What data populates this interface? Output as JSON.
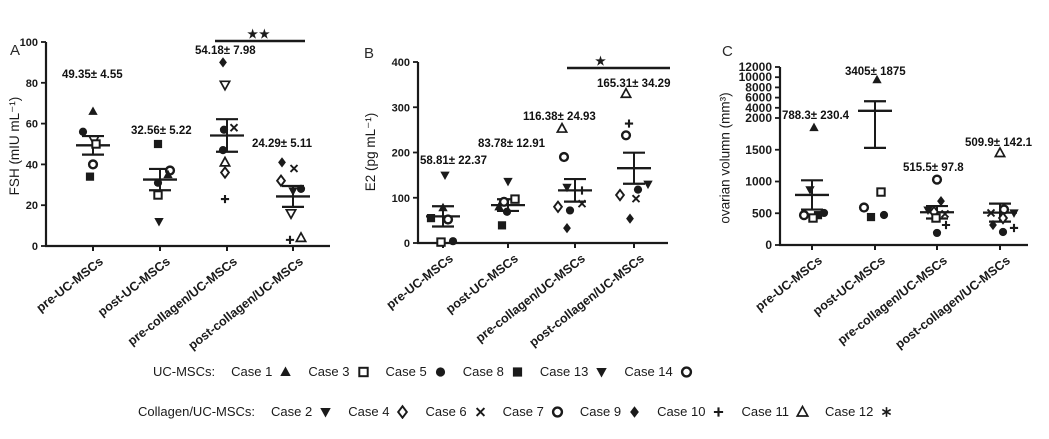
{
  "figure": {
    "background": "#ffffff",
    "ink_color": "#1a1a1a"
  },
  "legend": {
    "rows": [
      {
        "group_label": "UC-MSCs:",
        "entries": [
          {
            "case": "Case 1",
            "marker": "triangle-up-filled"
          },
          {
            "case": "Case 3",
            "marker": "square-open"
          },
          {
            "case": "Case 5",
            "marker": "circle-filled"
          },
          {
            "case": "Case 8",
            "marker": "square-filled"
          },
          {
            "case": "Case 13",
            "marker": "triangle-down-filled"
          },
          {
            "case": "Case 14",
            "marker": "circle-open"
          }
        ]
      },
      {
        "group_label": "Collagen/UC-MSCs:",
        "entries": [
          {
            "case": "Case 2",
            "marker": "triangle-down-filled"
          },
          {
            "case": "Case 4",
            "marker": "diamond-open"
          },
          {
            "case": "Case 6",
            "marker": "x"
          },
          {
            "case": "Case 7",
            "marker": "circle-open"
          },
          {
            "case": "Case 9",
            "marker": "diamond-filled"
          },
          {
            "case": "Case 10",
            "marker": "plus"
          },
          {
            "case": "Case 11",
            "marker": "triangle-up-open"
          },
          {
            "case": "Case 12",
            "marker": "asterisk"
          }
        ]
      }
    ]
  },
  "chart_data": [
    {
      "type": "scatter",
      "panel_label": "A",
      "ylabel": "FSH (mIU mL⁻¹)",
      "ylim": [
        0,
        100
      ],
      "yticks": [
        0,
        20,
        40,
        60,
        80,
        100
      ],
      "categories": [
        "pre-UC-MSCs",
        "post-UC-MSCs",
        "pre-collagen/UC-MSCs",
        "post-collagen/UC-MSCs"
      ],
      "group_stats": [
        {
          "mean": 49.35,
          "sem": 4.55,
          "label": "49.35± 4.55"
        },
        {
          "mean": 32.56,
          "sem": 5.22,
          "label": "32.56± 5.22"
        },
        {
          "mean": 54.18,
          "sem": 7.98,
          "label": "54.18± 7.98"
        },
        {
          "mean": 24.29,
          "sem": 5.11,
          "label": "24.29± 5.11"
        }
      ],
      "significance": {
        "between": [
          "pre-collagen/UC-MSCs",
          "post-collagen/UC-MSCs"
        ],
        "label": "★★"
      },
      "groups": [
        {
          "category": "pre-UC-MSCs",
          "points": [
            {
              "marker": "triangle-up-filled",
              "value": 66,
              "dx": 0
            },
            {
              "marker": "circle-filled",
              "value": 56,
              "dx": -10
            },
            {
              "marker": "triangle-down-open",
              "value": 52,
              "dx": 1
            },
            {
              "marker": "square-open",
              "value": 50,
              "dx": 3
            },
            {
              "marker": "circle-open",
              "value": 40,
              "dx": 0
            },
            {
              "marker": "square-filled",
              "value": 34,
              "dx": -3
            }
          ]
        },
        {
          "category": "post-UC-MSCs",
          "points": [
            {
              "marker": "square-filled",
              "value": 50,
              "dx": -2
            },
            {
              "marker": "circle-open",
              "value": 37,
              "dx": 10
            },
            {
              "marker": "triangle-up-filled",
              "value": 35,
              "dx": 8
            },
            {
              "marker": "circle-filled",
              "value": 31,
              "dx": -2
            },
            {
              "marker": "square-open",
              "value": 25,
              "dx": -2
            },
            {
              "marker": "triangle-down-filled",
              "value": 12,
              "dx": -1
            }
          ]
        },
        {
          "category": "pre-collagen/UC-MSCs",
          "points": [
            {
              "marker": "diamond-filled",
              "value": 90,
              "dx": -4
            },
            {
              "marker": "triangle-down-open",
              "value": 79,
              "dx": -2
            },
            {
              "marker": "x",
              "value": 58,
              "dx": 7
            },
            {
              "marker": "circle-filled",
              "value": 57,
              "dx": -3
            },
            {
              "marker": "circle-filled",
              "value": 47,
              "dx": -4
            },
            {
              "marker": "triangle-up-open",
              "value": 41,
              "dx": -2
            },
            {
              "marker": "diamond-open",
              "value": 36,
              "dx": -2
            },
            {
              "marker": "plus",
              "value": 23,
              "dx": -2
            }
          ]
        },
        {
          "category": "post-collagen/UC-MSCs",
          "points": [
            {
              "marker": "diamond-filled",
              "value": 41,
              "dx": -11
            },
            {
              "marker": "x",
              "value": 38,
              "dx": 1
            },
            {
              "marker": "diamond-open",
              "value": 32,
              "dx": -12
            },
            {
              "marker": "circle-filled",
              "value": 28,
              "dx": 8
            },
            {
              "marker": "triangle-down-filled",
              "value": 27,
              "dx": 0
            },
            {
              "marker": "triangle-down-open",
              "value": 16,
              "dx": -2
            },
            {
              "marker": "triangle-up-open",
              "value": 4,
              "dx": 8
            },
            {
              "marker": "plus",
              "value": 3,
              "dx": -3
            }
          ]
        }
      ]
    },
    {
      "type": "scatter",
      "panel_label": "B",
      "ylabel": "E2 (pg mL⁻¹)",
      "ylim": [
        0,
        400
      ],
      "yticks": [
        0,
        100,
        200,
        300,
        400
      ],
      "categories": [
        "pre-UC-MSCs",
        "post-UC-MSCs",
        "pre-collagen/UC-MSCs",
        "post-collagen/UC-MSCs"
      ],
      "group_stats": [
        {
          "mean": 58.81,
          "sem": 22.37,
          "label": "58.81± 22.37"
        },
        {
          "mean": 83.78,
          "sem": 12.91,
          "label": "83.78± 12.91"
        },
        {
          "mean": 116.38,
          "sem": 24.93,
          "label": "116.38± 24.93"
        },
        {
          "mean": 165.31,
          "sem": 34.29,
          "label": "165.31± 34.29"
        }
      ],
      "significance": {
        "between": [
          "pre-collagen/UC-MSCs",
          "post-collagen/UC-MSCs"
        ],
        "label": "★"
      },
      "groups": [
        {
          "category": "pre-UC-MSCs",
          "points": [
            {
              "marker": "triangle-down-filled",
              "value": 150,
              "dx": 2
            },
            {
              "marker": "triangle-up-filled",
              "value": 78,
              "dx": 0
            },
            {
              "marker": "square-filled",
              "value": 55,
              "dx": -12
            },
            {
              "marker": "circle-open",
              "value": 52,
              "dx": 5
            },
            {
              "marker": "circle-filled",
              "value": 4,
              "dx": 10
            },
            {
              "marker": "square-open",
              "value": 2,
              "dx": -2
            }
          ]
        },
        {
          "category": "post-UC-MSCs",
          "points": [
            {
              "marker": "triangle-down-filled",
              "value": 136,
              "dx": 0
            },
            {
              "marker": "square-open",
              "value": 97,
              "dx": 7
            },
            {
              "marker": "circle-open",
              "value": 91,
              "dx": -4
            },
            {
              "marker": "triangle-up-filled",
              "value": 80,
              "dx": -9
            },
            {
              "marker": "circle-filled",
              "value": 69,
              "dx": -1
            },
            {
              "marker": "square-filled",
              "value": 39,
              "dx": -6
            }
          ]
        },
        {
          "category": "pre-collagen/UC-MSCs",
          "points": [
            {
              "marker": "triangle-up-open",
              "value": 253,
              "dx": -13
            },
            {
              "marker": "circle-open",
              "value": 190,
              "dx": -11
            },
            {
              "marker": "triangle-down-filled",
              "value": 123,
              "dx": -8
            },
            {
              "marker": "plus",
              "value": 116,
              "dx": 7
            },
            {
              "marker": "x",
              "value": 87,
              "dx": 7
            },
            {
              "marker": "diamond-open",
              "value": 80,
              "dx": -17
            },
            {
              "marker": "circle-filled",
              "value": 72,
              "dx": -5
            },
            {
              "marker": "diamond-filled",
              "value": 33,
              "dx": -8
            }
          ]
        },
        {
          "category": "post-collagen/UC-MSCs",
          "points": [
            {
              "marker": "triangle-up-open",
              "value": 330,
              "dx": -8
            },
            {
              "marker": "plus",
              "value": 264,
              "dx": -5
            },
            {
              "marker": "circle-open",
              "value": 238,
              "dx": -8
            },
            {
              "marker": "triangle-down-filled",
              "value": 130,
              "dx": 14
            },
            {
              "marker": "circle-filled",
              "value": 118,
              "dx": 4
            },
            {
              "marker": "diamond-open",
              "value": 106,
              "dx": -14
            },
            {
              "marker": "x",
              "value": 98,
              "dx": 2
            },
            {
              "marker": "diamond-filled",
              "value": 54,
              "dx": -4
            }
          ]
        }
      ]
    },
    {
      "type": "scatter",
      "panel_label": "C",
      "ylabel": "ovarian volumn (mm³)",
      "ylim": [
        0,
        12000
      ],
      "yticks": [
        0,
        500,
        1000,
        1500,
        2000
      ],
      "axis_break": {
        "linear_max": 2000,
        "compressed_max": 12000,
        "compressed_ticks": [
          4000,
          6000,
          8000,
          10000,
          12000
        ]
      },
      "categories": [
        "pre-UC-MSCs",
        "post-UC-MSCs",
        "pre-collagen/UC-MSCs",
        "post-collagen/UC-MSCs"
      ],
      "group_stats": [
        {
          "mean": 788.3,
          "sem": 230.4,
          "label": "788.3± 230.4"
        },
        {
          "mean": 3405,
          "sem": 1875,
          "label": "3405± 1875"
        },
        {
          "mean": 515.5,
          "sem": 97.8,
          "label": "515.5± 97.8"
        },
        {
          "mean": 509.9,
          "sem": 142.1,
          "label": "509.9± 142.1"
        }
      ],
      "significance": null,
      "groups": [
        {
          "category": "pre-UC-MSCs",
          "points": [
            {
              "marker": "triangle-up-filled",
              "value": 1850,
              "dx": 2
            },
            {
              "marker": "triangle-down-filled",
              "value": 870,
              "dx": -2
            },
            {
              "marker": "circle-filled",
              "value": 505,
              "dx": 12
            },
            {
              "marker": "square-filled",
              "value": 470,
              "dx": 6
            },
            {
              "marker": "circle-open",
              "value": 470,
              "dx": -8
            },
            {
              "marker": "square-open",
              "value": 425,
              "dx": 1
            }
          ]
        },
        {
          "category": "post-UC-MSCs",
          "points": [
            {
              "marker": "triangle-up-filled",
              "value": 9500,
              "dx": 2
            },
            {
              "marker": "square-open",
              "value": 834,
              "dx": 6
            },
            {
              "marker": "circle-open",
              "value": 590,
              "dx": -11
            },
            {
              "marker": "circle-filled",
              "value": 472,
              "dx": 9
            },
            {
              "marker": "square-filled",
              "value": 440,
              "dx": -4
            }
          ]
        },
        {
          "category": "pre-collagen/UC-MSCs",
          "points": [
            {
              "marker": "circle-open",
              "value": 1030,
              "dx": 0
            },
            {
              "marker": "diamond-filled",
              "value": 690,
              "dx": 4
            },
            {
              "marker": "triangle-down-filled",
              "value": 550,
              "dx": -9
            },
            {
              "marker": "diamond-open",
              "value": 520,
              "dx": -3
            },
            {
              "marker": "x",
              "value": 490,
              "dx": 8
            },
            {
              "marker": "square-open",
              "value": 425,
              "dx": -1
            },
            {
              "marker": "plus",
              "value": 315,
              "dx": 9
            },
            {
              "marker": "circle-filled",
              "value": 190,
              "dx": 0
            }
          ]
        },
        {
          "category": "post-collagen/UC-MSCs",
          "points": [
            {
              "marker": "triangle-up-open",
              "value": 1450,
              "dx": 0
            },
            {
              "marker": "circle-open",
              "value": 560,
              "dx": 4
            },
            {
              "marker": "triangle-down-filled",
              "value": 505,
              "dx": 14
            },
            {
              "marker": "x",
              "value": 505,
              "dx": -9
            },
            {
              "marker": "diamond-open",
              "value": 425,
              "dx": 3
            },
            {
              "marker": "diamond-filled",
              "value": 315,
              "dx": -7
            },
            {
              "marker": "plus",
              "value": 268,
              "dx": 14
            },
            {
              "marker": "circle-filled",
              "value": 205,
              "dx": 3
            }
          ]
        }
      ]
    }
  ]
}
